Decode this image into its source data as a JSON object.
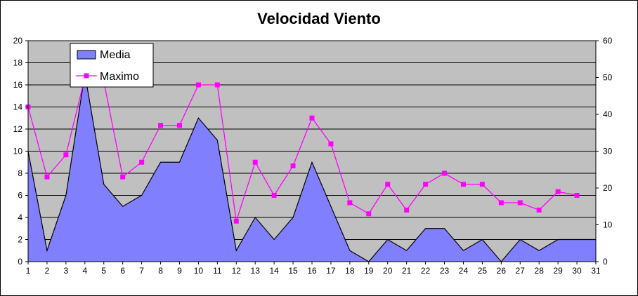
{
  "chart_data": {
    "type": "area",
    "title": "Velocidad Viento",
    "x": [
      1,
      2,
      3,
      4,
      5,
      6,
      7,
      8,
      9,
      10,
      11,
      12,
      13,
      14,
      15,
      16,
      17,
      18,
      19,
      20,
      21,
      22,
      23,
      24,
      25,
      26,
      27,
      28,
      29,
      30,
      31
    ],
    "xlim": [
      1,
      31
    ],
    "ylim_left": [
      0,
      20
    ],
    "ylim_right": [
      0,
      60
    ],
    "yticks_left": [
      0,
      2,
      4,
      6,
      8,
      10,
      12,
      14,
      16,
      18,
      20
    ],
    "yticks_right": [
      0,
      10,
      20,
      30,
      40,
      50,
      60
    ],
    "grid": true,
    "plot_background": "#C0C0C0",
    "legend_position": "top-left",
    "series": [
      {
        "name": "Media",
        "type": "area",
        "axis": "left",
        "color": "#8080FF",
        "values": [
          10,
          1,
          6,
          17,
          7,
          5,
          6,
          9,
          9,
          13,
          11,
          1,
          4,
          2,
          4,
          9,
          5,
          1,
          0,
          2,
          1,
          3,
          3,
          1,
          2,
          0,
          2,
          1,
          2,
          2,
          2
        ]
      },
      {
        "name": "Maximo",
        "type": "line",
        "axis": "right",
        "color": "#FF00FF",
        "x": [
          1,
          2,
          3,
          4,
          5,
          6,
          7,
          8,
          9,
          10,
          11,
          12,
          13,
          14,
          15,
          16,
          17,
          18,
          19,
          20,
          21,
          22,
          23,
          24,
          25,
          26,
          27,
          28,
          29,
          30
        ],
        "values": [
          42,
          23,
          29,
          50,
          49,
          23,
          27,
          37,
          37,
          48,
          48,
          11,
          27,
          18,
          26,
          39,
          32,
          16,
          13,
          21,
          14,
          21,
          24,
          21,
          21,
          16,
          16,
          14,
          19,
          18
        ]
      }
    ]
  }
}
